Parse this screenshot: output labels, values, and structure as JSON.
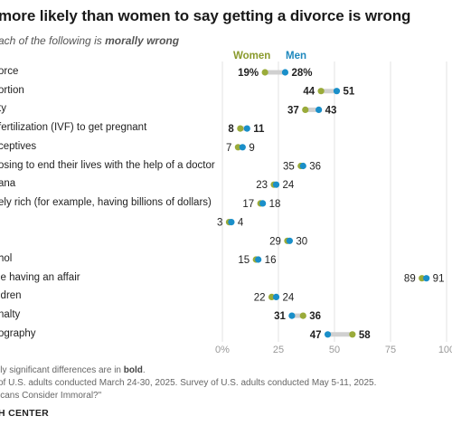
{
  "title": "more likely than women to say getting a divorce is wrong",
  "subtitle_prefix": "ach of the following is ",
  "subtitle_emphasis": "morally wrong",
  "legend": {
    "women": "Women",
    "men": "Men"
  },
  "colors": {
    "women": "#9aab3a",
    "men": "#1a8fc9",
    "connector": "#d0d0d0",
    "grid": "#e3e3e3",
    "axis_text": "#999999"
  },
  "notes": {
    "line1_prefix": "lly significant differences are in ",
    "line1_bold": "bold",
    "line2": "of U.S. adults conducted March 24-30, 2025. Survey of U.S. adults conducted May 5-11, 2025.",
    "line3": "icans Consider Immoral?\""
  },
  "brand": "H CENTER",
  "chart_data": {
    "type": "dot",
    "xlim": [
      0,
      100
    ],
    "x_ticks": [
      "0%",
      "25",
      "50",
      "75",
      "100"
    ],
    "categories": [
      "orce",
      "ortion",
      "ty",
      " fertilization (IVF) to get pregnant",
      "ceptives",
      "osing to end their lives with the help of a doctor",
      "ana",
      "ely rich (for example, having billions of dollars)",
      "",
      "",
      "hol",
      "le having an affair",
      "ldren",
      "nalty",
      "ography"
    ],
    "series": [
      {
        "name": "Women",
        "values": [
          19,
          44,
          37,
          8,
          7,
          35,
          23,
          17,
          3,
          29,
          15,
          89,
          22,
          36,
          58
        ]
      },
      {
        "name": "Men",
        "values": [
          28,
          51,
          43,
          11,
          9,
          36,
          24,
          18,
          4,
          30,
          16,
          91,
          24,
          31,
          47
        ]
      }
    ],
    "bold_rows": [
      0,
      1,
      2,
      3,
      13,
      14
    ]
  }
}
